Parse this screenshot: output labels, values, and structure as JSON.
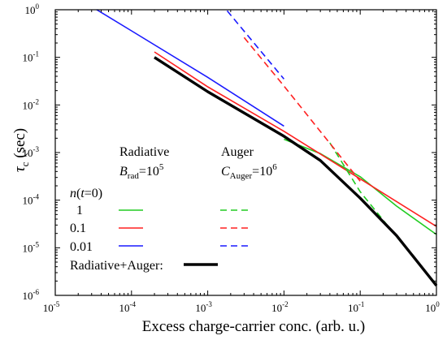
{
  "chart_data": {
    "type": "line",
    "title": "",
    "xlabel": "Excess charge-carrier conc. (arb. u.)",
    "ylabel_main": "τ",
    "ylabel_sub": "c",
    "ylabel_unit": " (sec)",
    "xscale": "log",
    "yscale": "log",
    "xlim": [
      1e-05,
      1
    ],
    "ylim": [
      1e-06,
      1
    ],
    "grid": false,
    "x_ticks": [
      {
        "value": 1e-05,
        "base": "10",
        "exp": "-5"
      },
      {
        "value": 0.0001,
        "base": "10",
        "exp": "-4"
      },
      {
        "value": 0.001,
        "base": "10",
        "exp": "-3"
      },
      {
        "value": 0.01,
        "base": "10",
        "exp": "-2"
      },
      {
        "value": 0.1,
        "base": "10",
        "exp": "-1"
      },
      {
        "value": 1,
        "base": "10",
        "exp": "0"
      }
    ],
    "y_ticks": [
      {
        "value": 1e-06,
        "base": "10",
        "exp": "-6"
      },
      {
        "value": 1e-05,
        "base": "10",
        "exp": "-5"
      },
      {
        "value": 0.0001,
        "base": "10",
        "exp": "-4"
      },
      {
        "value": 0.001,
        "base": "10",
        "exp": "-3"
      },
      {
        "value": 0.01,
        "base": "10",
        "exp": "-2"
      },
      {
        "value": 0.1,
        "base": "10",
        "exp": "-1"
      },
      {
        "value": 1,
        "base": "10",
        "exp": "0"
      }
    ],
    "series": [
      {
        "kind": "radiative",
        "n0": "1",
        "color": "#22cc22",
        "dash": false,
        "points": [
          [
            0.01,
            0.0019
          ],
          [
            0.03,
            0.00095
          ],
          [
            0.1,
            0.00031
          ],
          [
            0.3,
            7.5e-05
          ],
          [
            1,
            1.9e-05
          ]
        ]
      },
      {
        "kind": "radiative",
        "n0": "0.1",
        "color": "#ff2020",
        "dash": false,
        "points": [
          [
            0.0002,
            0.13
          ],
          [
            0.001,
            0.024
          ],
          [
            0.01,
            0.0028
          ],
          [
            0.1,
            0.00028
          ],
          [
            1,
            2.8e-05
          ]
        ]
      },
      {
        "kind": "radiative",
        "n0": "0.01",
        "color": "#1a1aff",
        "dash": false,
        "points": [
          [
            3.5e-05,
            1.0
          ],
          [
            0.0001,
            0.36
          ],
          [
            0.001,
            0.038
          ],
          [
            0.01,
            0.0036
          ]
        ]
      },
      {
        "kind": "auger",
        "n0": "1",
        "color": "#22cc22",
        "dash": true,
        "points": [
          [
            0.04,
            0.0016
          ],
          [
            0.1,
            0.00015
          ],
          [
            0.3,
            1.7e-05
          ],
          [
            1,
            1.7e-06
          ]
        ]
      },
      {
        "kind": "auger",
        "n0": "0.1",
        "color": "#ff2020",
        "dash": true,
        "points": [
          [
            0.003,
            0.26
          ],
          [
            0.01,
            0.025
          ],
          [
            0.1,
            0.00025
          ]
        ]
      },
      {
        "kind": "auger",
        "n0": "0.01",
        "color": "#1a1aff",
        "dash": true,
        "points": [
          [
            0.0018,
            0.95
          ],
          [
            0.01,
            0.035
          ]
        ]
      },
      {
        "kind": "combined",
        "name": "Radiative+Auger",
        "color": "#000000",
        "dash": false,
        "bold": true,
        "points": [
          [
            0.0002,
            0.1
          ],
          [
            0.001,
            0.019
          ],
          [
            0.01,
            0.0022
          ],
          [
            0.03,
            0.00068
          ],
          [
            0.1,
            0.00011
          ],
          [
            0.3,
            1.8e-05
          ],
          [
            1,
            1.6e-06
          ]
        ]
      }
    ],
    "annotations": {
      "radiative_header": "Radiative",
      "auger_header": "Auger",
      "brad_symbol": "B",
      "brad_sub": "rad",
      "brad_eq": "=10",
      "brad_exp": "5",
      "cauger_symbol": "C",
      "cauger_sub": "Auger",
      "cauger_eq": "=10",
      "cauger_exp": "6",
      "n_label": "n",
      "n_label_rest1": "(",
      "n_label_t": "t",
      "n_label_rest2": "=0)",
      "legend_rows": [
        "1",
        "0.1",
        "0.01"
      ],
      "combined_label": "Radiative+Auger:"
    }
  }
}
